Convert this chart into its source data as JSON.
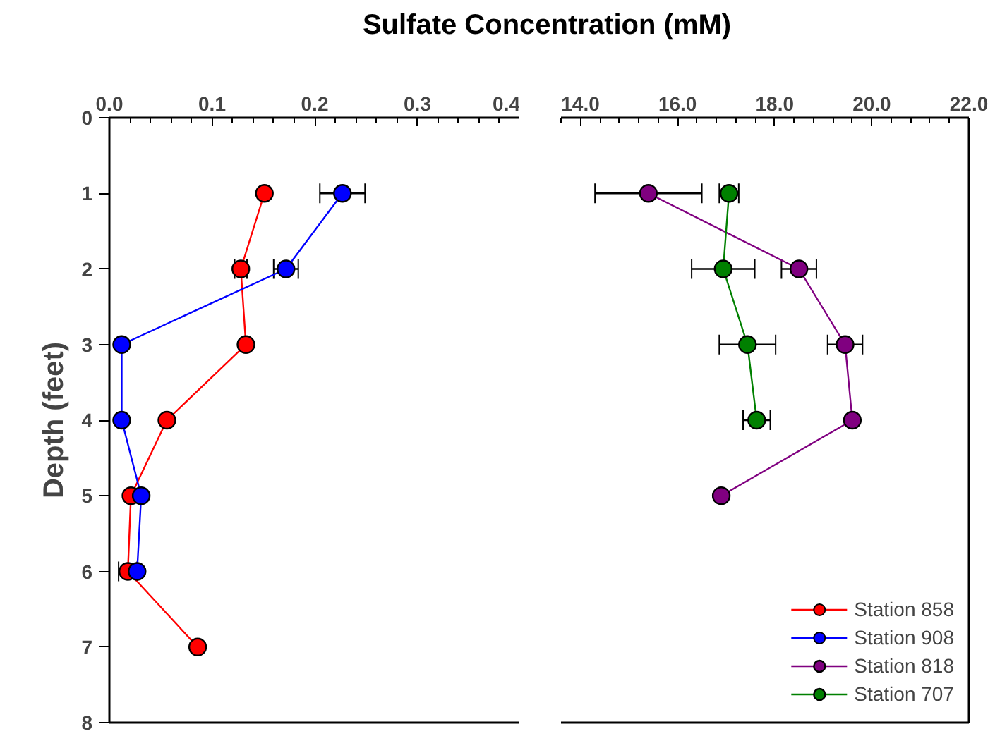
{
  "chart_data": [
    {
      "type": "line",
      "xlabel": "Sulfate Concentration (mM)",
      "ylabel": "Depth (feet)",
      "xlim": [
        0,
        0.4
      ],
      "ylim": [
        8,
        0
      ],
      "xticks": [
        {
          "value": 0,
          "label": "0.0"
        },
        {
          "value": 0.1,
          "label": "0.1"
        },
        {
          "value": 0.2,
          "label": "0.2"
        },
        {
          "value": 0.3,
          "label": "0.3"
        },
        {
          "value": 0.4,
          "label": "0.4"
        }
      ],
      "yticks": [
        0,
        1,
        2,
        3,
        4,
        5,
        6,
        7,
        8
      ],
      "grid": false,
      "marker": "circle",
      "line_style": "solid",
      "legend": "bottom right",
      "series": [
        {
          "name": "Station 858",
          "color": "#ff0000",
          "x": [
            0.151,
            0.128,
            0.133,
            0.056,
            0.021,
            0.018,
            0.086
          ],
          "values": [
            1,
            2,
            3,
            4,
            5,
            6,
            7
          ],
          "xerrors": [
            null,
            0.006,
            null,
            null,
            null,
            0.009,
            null
          ]
        },
        {
          "name": "Station 908",
          "color": "#0000ff",
          "x": [
            0.227,
            0.172,
            0.012,
            0.012,
            0.031,
            0.027
          ],
          "values": [
            1,
            2,
            3,
            4,
            5,
            6
          ],
          "xerrors": [
            0.022,
            0.012,
            null,
            null,
            null,
            null
          ]
        }
      ]
    },
    {
      "type": "line",
      "xlim": [
        13.6,
        22
      ],
      "ylim": [
        8,
        0
      ],
      "tick_labels": "x",
      "xticks": [
        {
          "value": 14,
          "label": "14.0"
        },
        {
          "value": 16,
          "label": "16.0"
        },
        {
          "value": 18,
          "label": "18.0"
        },
        {
          "value": 20,
          "label": "20.0"
        },
        {
          "value": 22,
          "label": "22.0"
        }
      ],
      "grid": false,
      "marker": "circle",
      "line_style": "solid",
      "legend": "bottom right",
      "series": [
        {
          "name": "Station 818",
          "color": "#800080",
          "x": [
            15.4,
            18.5,
            19.45,
            19.6,
            16.9
          ],
          "values": [
            1,
            2,
            3,
            4,
            5
          ],
          "xerrors": [
            1.1,
            0.36,
            0.36,
            null,
            null
          ]
        },
        {
          "name": "Station 707",
          "color": "#008000",
          "x": [
            17.06,
            16.94,
            17.44,
            17.63
          ],
          "values": [
            1,
            2,
            3,
            4
          ],
          "xerrors": [
            0.2,
            0.65,
            0.58,
            0.28
          ]
        }
      ]
    }
  ]
}
